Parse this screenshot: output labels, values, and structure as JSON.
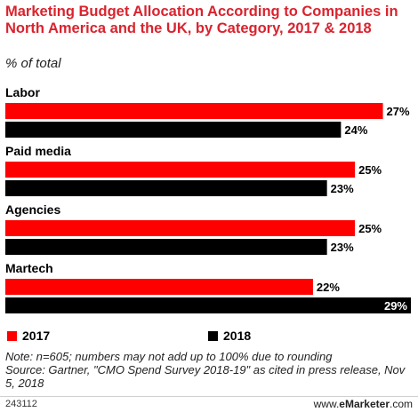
{
  "title": "Marketing Budget Allocation According to Companies in North America and the UK, by Category, 2017 & 2018",
  "subtitle": "% of total",
  "footnote": "Note: n=605; numbers may not add up to 100% due to rounding",
  "source": "Source: Gartner, \"CMO Spend Survey 2018-19\" as cited in press release, Nov 5, 2018",
  "chart_id": "243112",
  "brand": "www.eMarketer.com",
  "colors": {
    "series_2017": "#ff0000",
    "series_2018": "#000000",
    "title": "#d9232e"
  },
  "chart_data": {
    "type": "bar",
    "orientation": "horizontal",
    "categories": [
      "Labor",
      "Paid media",
      "Agencies",
      "Martech"
    ],
    "series": [
      {
        "name": "2017",
        "values": [
          27,
          25,
          25,
          22
        ],
        "labels": [
          "27%",
          "25%",
          "25%",
          "22%"
        ]
      },
      {
        "name": "2018",
        "values": [
          24,
          23,
          23,
          29
        ],
        "labels": [
          "24%",
          "23%",
          "23%",
          "29%"
        ]
      }
    ],
    "xlim": [
      0,
      29
    ],
    "grid": false,
    "legend": "bottom-left"
  }
}
